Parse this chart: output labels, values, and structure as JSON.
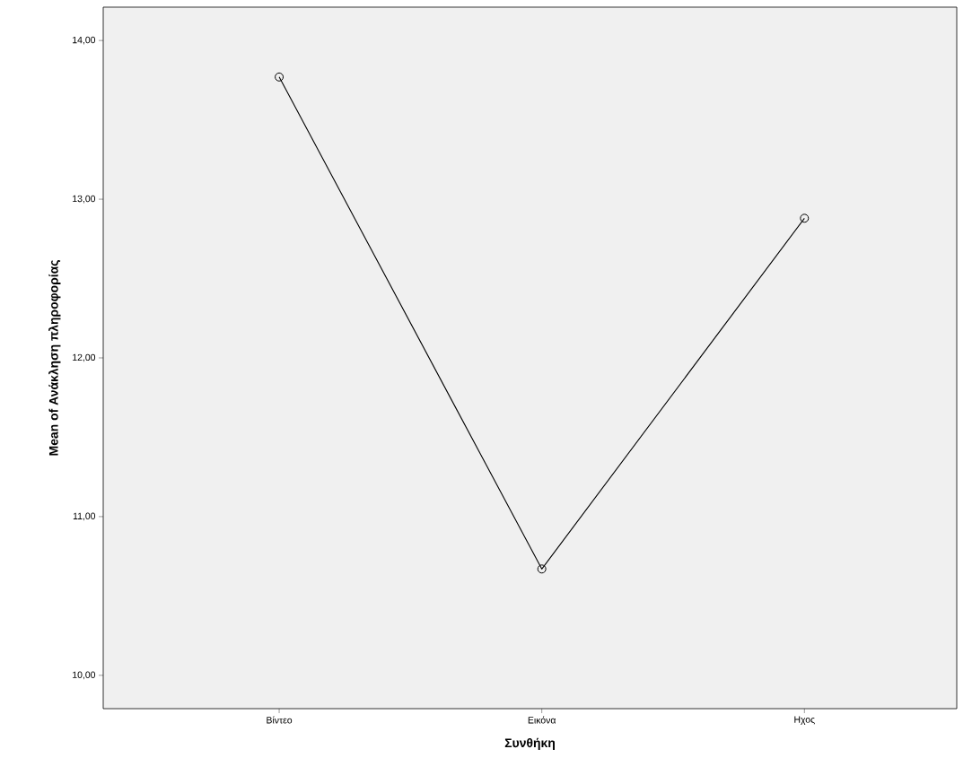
{
  "chart_data": {
    "type": "line",
    "xlabel": "Συνθήκη",
    "ylabel": "Mean of Ανάκληση πληροφορίας",
    "categories": [
      "Βίντεο",
      "Εικόνα",
      "Ηχος"
    ],
    "series": [
      {
        "color": "#000000",
        "values": [
          13.77,
          10.67,
          12.88
        ]
      }
    ],
    "ylim": [
      9.79,
      14.21
    ],
    "yticks": [
      {
        "value": 10,
        "label": "10,00"
      },
      {
        "value": 11,
        "label": "11,00"
      },
      {
        "value": 12,
        "label": "12,00"
      },
      {
        "value": 13,
        "label": "13,00"
      },
      {
        "value": 14,
        "label": "14,00"
      }
    ],
    "marker": "circle",
    "line_style": "solid",
    "grid": false
  }
}
